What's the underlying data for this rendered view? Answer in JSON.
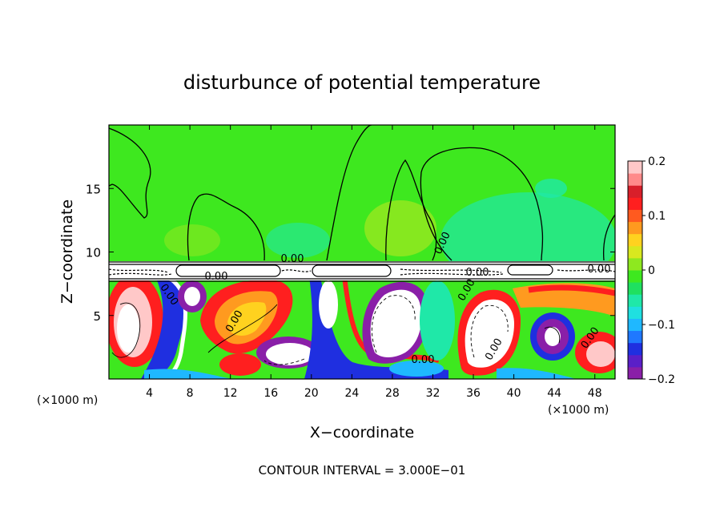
{
  "chart_data": {
    "type": "heatmap",
    "title": "disturbunce of potential temperature",
    "xlabel": "X−coordinate",
    "ylabel": "Z−coordinate",
    "x_unit_left": "(×1000 m)",
    "x_unit_right": "(×1000 m)",
    "xlim": [
      0,
      50
    ],
    "ylim": [
      0,
      20
    ],
    "x_ticks": [
      4,
      8,
      12,
      16,
      20,
      24,
      28,
      32,
      36,
      40,
      44,
      48
    ],
    "y_ticks": [
      5,
      10,
      15
    ],
    "colorbar": {
      "ticks": [
        {
          "value": 0.2,
          "label": "0.2"
        },
        {
          "value": 0.1,
          "label": "0.1"
        },
        {
          "value": 0,
          "label": "0"
        },
        {
          "value": -0.1,
          "label": "−0.1"
        },
        {
          "value": -0.2,
          "label": "−0.2"
        }
      ],
      "range": [
        -0.2,
        0.2
      ],
      "colors": [
        "#8a1fa8",
        "#5a1fc8",
        "#1f2fe0",
        "#1f78ff",
        "#1fb8ff",
        "#1fe0e0",
        "#1fe8a8",
        "#1fe060",
        "#3ee81f",
        "#8ee81f",
        "#d8e81f",
        "#ffd21f",
        "#ff9a1f",
        "#ff5a1f",
        "#ff1f1f",
        "#d81f2a",
        "#ff8a8a",
        "#ffc8c8"
      ]
    },
    "contour_labels": [
      "0.00",
      "0.00",
      "0.00",
      "0.00",
      "0.00",
      "0.00",
      "0.00",
      "0.00",
      "0.00",
      "0.00",
      "0.00"
    ],
    "footer": "CONTOUR INTERVAL = 3.000E−01"
  }
}
